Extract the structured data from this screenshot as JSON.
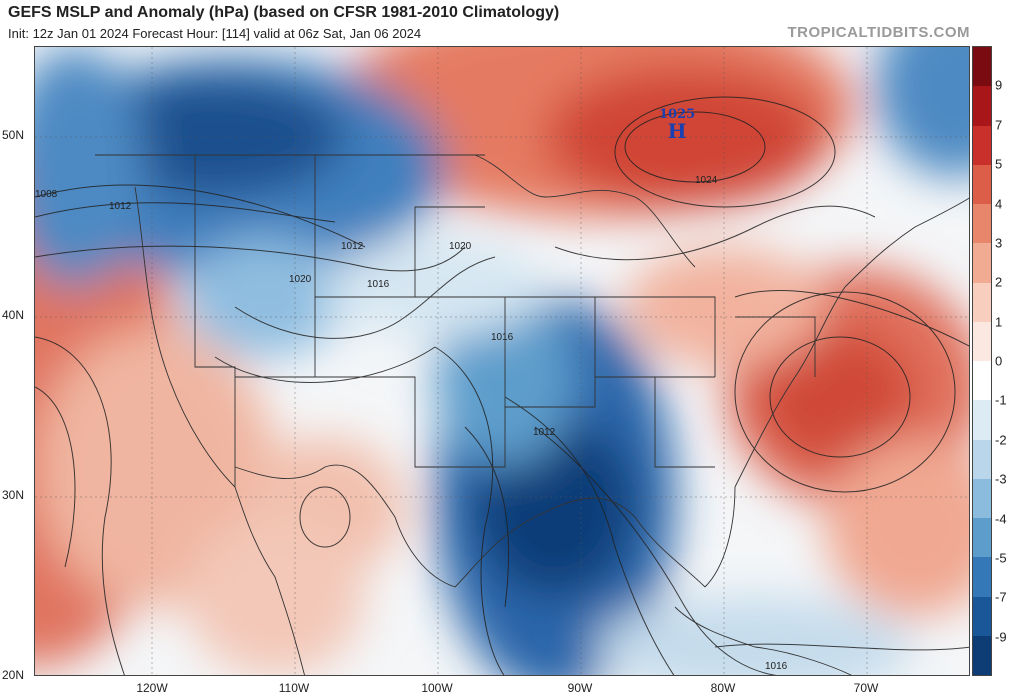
{
  "header": {
    "title": "GEFS MSLP and Anomaly (hPa) (based on CFSR 1981-2010 Climatology)",
    "subtitle": "Init: 12z Jan 01 2024   Forecast Hour: [114]   valid at 06z Sat, Jan 06 2024",
    "brand": "TROPICALTIDBITS.COM"
  },
  "axes": {
    "lat_labels": [
      "50N",
      "40N",
      "30N",
      "20N"
    ],
    "lon_labels": [
      "120W",
      "110W",
      "100W",
      "90W",
      "80W",
      "70W"
    ]
  },
  "colorbar": {
    "labels": [
      "9",
      "7",
      "5",
      "4",
      "3",
      "2",
      "1",
      "0",
      "-1",
      "-2",
      "-3",
      "-4",
      "-5",
      "-7",
      "-9"
    ],
    "colors": [
      "#7a0b10",
      "#a8161a",
      "#c9302c",
      "#dc5d48",
      "#e8866c",
      "#f1ab93",
      "#f8cfbf",
      "#fbe8e0",
      "#ffffff",
      "#dcebf4",
      "#b9d6ea",
      "#8cbcdd",
      "#5d9dcc",
      "#3578b8",
      "#1a5799",
      "#0e3c74"
    ]
  },
  "isobar_labels": [
    "1025",
    "1024",
    "1020",
    "1020",
    "1016",
    "1016",
    "1012",
    "1012",
    "1012",
    "1008",
    "1016"
  ],
  "high_center": {
    "pressure": "1025",
    "letter": "H"
  }
}
